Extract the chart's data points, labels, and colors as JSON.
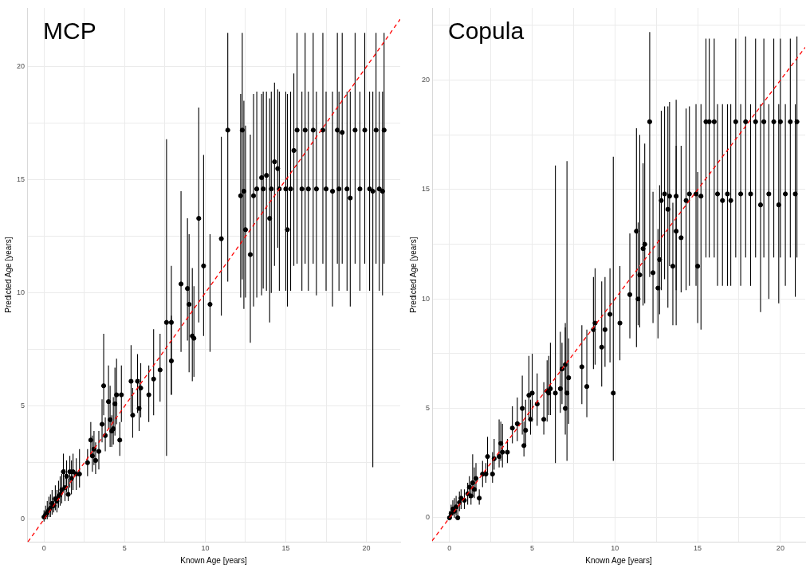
{
  "chart_data": [
    {
      "type": "scatter",
      "title": "MCP",
      "xlabel": "Known Age [years]",
      "ylabel": "Predicted Age [years]",
      "xlim": [
        -1.05,
        22.1
      ],
      "ylim": [
        -1.0,
        22.6
      ],
      "xticks": [
        0,
        {
          "value": 2.5,
          "label": null
        },
        5,
        {
          "value": 7.5,
          "label": null
        },
        10,
        {
          "value": 12.5,
          "label": null
        },
        15,
        {
          "value": 17.5,
          "label": null
        },
        20
      ],
      "yticks": [
        0,
        {
          "value": 2.5,
          "label": null
        },
        5,
        {
          "value": 7.5,
          "label": null
        },
        10,
        {
          "value": 12.5,
          "label": null
        },
        15,
        {
          "value": 17.5,
          "label": null
        },
        20
      ],
      "grid": true,
      "legend": false,
      "marker": "circle",
      "series": [
        {
          "color": "#000000",
          "x": [
            0,
            0.1,
            0.2,
            0.3,
            0.4,
            0.5,
            0.6,
            0.7,
            0.8,
            0.9,
            1.0,
            1.1,
            1.2,
            1.3,
            1.4,
            1.5,
            1.6,
            1.7,
            1.8,
            2.0,
            2.2,
            2.7,
            2.9,
            3.0,
            3.1,
            3.2,
            3.4,
            3.6,
            3.7,
            3.8,
            4.0,
            4.1,
            4.2,
            4.3,
            4.4,
            4.5,
            4.7,
            4.8,
            5.4,
            5.5,
            5.8,
            5.9,
            6.0,
            6.5,
            6.8,
            7.2,
            7.6,
            7.9,
            7.9,
            8.5,
            8.9,
            9.0,
            9.2,
            9.3,
            9.6,
            9.9,
            10.3,
            11.0,
            11.4,
            12.2,
            12.3,
            12.4,
            12.5,
            12.8,
            13.0,
            13.2,
            13.5,
            13.6,
            13.8,
            14.0,
            14.1,
            14.3,
            14.5,
            14.6,
            15.0,
            15.1,
            15.3,
            15.5,
            15.7,
            16.0,
            16.2,
            16.4,
            16.7,
            16.9,
            17.3,
            17.5,
            17.9,
            18.2,
            18.3,
            18.5,
            18.8,
            19.0,
            19.3,
            19.6,
            19.9,
            20.2,
            20.4,
            20.6,
            20.8,
            21.0,
            21.1
          ],
          "values": [
            0.1,
            0.2,
            0.3,
            0.4,
            0.5,
            0.7,
            0.6,
            0.9,
            0.8,
            1.0,
            1.1,
            1.3,
            2.1,
            1.4,
            1.9,
            1.1,
            2.1,
            1.8,
            2.1,
            2.0,
            2.0,
            2.5,
            3.5,
            2.8,
            3.1,
            2.6,
            3.0,
            4.2,
            5.9,
            3.7,
            5.2,
            4.4,
            3.9,
            4.0,
            5.1,
            5.5,
            3.5,
            5.5,
            6.1,
            4.6,
            6.1,
            4.9,
            5.8,
            5.5,
            6.2,
            6.6,
            8.7,
            8.7,
            7.0,
            10.4,
            10.2,
            9.5,
            8.1,
            8.0,
            13.3,
            11.2,
            9.5,
            12.4,
            17.2,
            14.3,
            17.2,
            14.5,
            12.8,
            11.7,
            14.3,
            14.6,
            15.1,
            14.6,
            15.2,
            13.3,
            14.6,
            15.8,
            15.5,
            14.6,
            14.6,
            12.8,
            14.6,
            16.3,
            17.2,
            14.6,
            17.2,
            14.6,
            17.2,
            14.6,
            17.2,
            14.6,
            14.5,
            17.2,
            14.6,
            17.1,
            14.6,
            14.2,
            17.2,
            14.6,
            17.2,
            14.6,
            14.5,
            17.2,
            14.6,
            14.5,
            17.2
          ],
          "errors": [
            [
              -0.1,
              0.4
            ],
            [
              0,
              0.6
            ],
            [
              0,
              0.8
            ],
            [
              0.1,
              1.0
            ],
            [
              0.1,
              1.1
            ],
            [
              0.2,
              1.3
            ],
            [
              0.3,
              1.0
            ],
            [
              0.4,
              1.5
            ],
            [
              0.3,
              1.3
            ],
            [
              0.5,
              1.7
            ],
            [
              0.6,
              1.9
            ],
            [
              0.7,
              2.0
            ],
            [
              1.4,
              2.9
            ],
            [
              0.8,
              2.2
            ],
            [
              1.2,
              2.6
            ],
            [
              0.8,
              1.8
            ],
            [
              1.4,
              2.8
            ],
            [
              1.1,
              2.6
            ],
            [
              1.3,
              2.9
            ],
            [
              1.3,
              2.7
            ],
            [
              1.4,
              3.1
            ],
            [
              1.9,
              3.1
            ],
            [
              2.8,
              4.3
            ],
            [
              2.1,
              3.7
            ],
            [
              2.4,
              3.9
            ],
            [
              2.0,
              3.4
            ],
            [
              2.2,
              3.9
            ],
            [
              3.4,
              5.3
            ],
            [
              4.6,
              8.2
            ],
            [
              3.0,
              4.5
            ],
            [
              4.0,
              6.8
            ],
            [
              3.2,
              5.9
            ],
            [
              3.2,
              4.6
            ],
            [
              3.3,
              5.4
            ],
            [
              3.7,
              6.7
            ],
            [
              4.2,
              7.1
            ],
            [
              2.8,
              4.3
            ],
            [
              4.3,
              6.8
            ],
            [
              4.7,
              7.7
            ],
            [
              3.6,
              5.8
            ],
            [
              4.7,
              7.3
            ],
            [
              3.9,
              6.2
            ],
            [
              4.5,
              6.9
            ],
            [
              4.3,
              6.8
            ],
            [
              4.6,
              8.4
            ],
            [
              5.2,
              8.2
            ],
            [
              2.8,
              16.8
            ],
            [
              5.5,
              11.2
            ],
            [
              5.5,
              9.0
            ],
            [
              7.4,
              14.5
            ],
            [
              7.9,
              13.3
            ],
            [
              6.5,
              12.6
            ],
            [
              6.1,
              11.1
            ],
            [
              6.3,
              10.3
            ],
            [
              8.7,
              18.2
            ],
            [
              8.1,
              16.1
            ],
            [
              7.4,
              12.6
            ],
            [
              9.0,
              16.9
            ],
            [
              10.5,
              21.5
            ],
            [
              9.8,
              18.8
            ],
            [
              10.6,
              21.5
            ],
            [
              9.3,
              18.5
            ],
            [
              9.8,
              17.4
            ],
            [
              7.8,
              17.0
            ],
            [
              9.4,
              18.8
            ],
            [
              9.8,
              18.9
            ],
            [
              9.9,
              18.8
            ],
            [
              10.2,
              18.9
            ],
            [
              10.1,
              18.9
            ],
            [
              8.7,
              18.6
            ],
            [
              10.0,
              18.9
            ],
            [
              11.2,
              19.3
            ],
            [
              12.0,
              19.0
            ],
            [
              10.1,
              18.9
            ],
            [
              10.1,
              18.9
            ],
            [
              9.4,
              18.8
            ],
            [
              10.1,
              18.9
            ],
            [
              11.2,
              19.7
            ],
            [
              11.3,
              21.5
            ],
            [
              10.1,
              18.9
            ],
            [
              11.3,
              21.5
            ],
            [
              10.1,
              18.9
            ],
            [
              11.3,
              21.5
            ],
            [
              9.9,
              18.9
            ],
            [
              11.3,
              21.5
            ],
            [
              10.1,
              18.9
            ],
            [
              9.4,
              18.9
            ],
            [
              11.3,
              21.5
            ],
            [
              10.1,
              18.9
            ],
            [
              11.3,
              21.5
            ],
            [
              10.1,
              18.9
            ],
            [
              9.4,
              18.9
            ],
            [
              11.3,
              21.5
            ],
            [
              10.1,
              18.9
            ],
            [
              11.3,
              21.5
            ],
            [
              10.1,
              18.9
            ],
            [
              2.3,
              18.9
            ],
            [
              11.3,
              21.5
            ],
            [
              10.1,
              18.9
            ],
            [
              9.9,
              18.9
            ],
            [
              11.3,
              21.5
            ]
          ]
        },
        {
          "type": "line",
          "color": "#ff0000",
          "line_style": "dashed",
          "marker": "none",
          "x": [
            -1.0,
            22.1
          ],
          "values": [
            -1.0,
            22.1
          ]
        }
      ]
    },
    {
      "type": "scatter",
      "title": "Copula",
      "xlabel": "Known Age [years]",
      "ylabel": "Predicted Age [years]",
      "xlim": [
        -1.05,
        21.5
      ],
      "ylim": [
        -1.1,
        23.3
      ],
      "xticks": [
        0,
        {
          "value": 2.5,
          "label": null
        },
        5,
        {
          "value": 7.5,
          "label": null
        },
        10,
        {
          "value": 12.5,
          "label": null
        },
        15,
        {
          "value": 17.5,
          "label": null
        },
        20
      ],
      "yticks": [
        0,
        {
          "value": 2.5,
          "label": null
        },
        5,
        {
          "value": 7.5,
          "label": null
        },
        10,
        {
          "value": 12.5,
          "label": null
        },
        15,
        {
          "value": 17.5,
          "label": null
        },
        20,
        {
          "value": 22.5,
          "label": null
        }
      ],
      "grid": true,
      "legend": false,
      "marker": "circle",
      "series": [
        {
          "color": "#000000",
          "x": [
            0,
            0.1,
            0.2,
            0.3,
            0.4,
            0.5,
            0.6,
            0.7,
            0.9,
            1.1,
            1.2,
            1.3,
            1.4,
            1.5,
            1.6,
            1.8,
            2.0,
            2.2,
            2.3,
            2.6,
            2.7,
            3.0,
            3.1,
            3.2,
            3.5,
            3.8,
            4.1,
            4.4,
            4.5,
            4.6,
            4.8,
            4.9,
            5.0,
            5.3,
            5.7,
            5.9,
            6.0,
            6.1,
            6.4,
            6.7,
            6.8,
            7.0,
            7.0,
            7.1,
            7.2,
            8.0,
            8.3,
            8.7,
            8.8,
            9.2,
            9.4,
            9.7,
            9.9,
            10.3,
            10.9,
            11.3,
            11.4,
            11.5,
            11.7,
            11.8,
            12.1,
            12.3,
            12.6,
            12.7,
            12.8,
            13.0,
            13.2,
            13.3,
            13.5,
            13.7,
            13.7,
            14.0,
            14.3,
            14.5,
            14.9,
            15.0,
            15.2,
            15.5,
            15.7,
            16.0,
            16.2,
            16.5,
            16.8,
            17.0,
            17.3,
            17.6,
            17.9,
            18.2,
            18.5,
            18.8,
            19.0,
            19.3,
            19.6,
            19.9,
            20.0,
            20.3,
            20.6,
            20.9,
            21.0
          ],
          "values": [
            0,
            0.2,
            0.4,
            0.3,
            0.5,
            0,
            0.7,
            0.9,
            0.8,
            1.1,
            1.4,
            1.0,
            1.6,
            1.3,
            1.8,
            0.9,
            2.0,
            2.0,
            2.8,
            2.0,
            2.7,
            2.8,
            3.4,
            3.0,
            3.0,
            4.1,
            4.3,
            5.0,
            3.3,
            4.0,
            5.6,
            4.5,
            5.7,
            5.2,
            4.5,
            5.8,
            5.7,
            5.9,
            5.7,
            5.9,
            6.8,
            5.0,
            7.0,
            5.7,
            6.4,
            6.9,
            6.0,
            8.6,
            8.9,
            7.8,
            8.6,
            9.3,
            5.7,
            8.9,
            10.2,
            13.1,
            10.0,
            11.1,
            12.3,
            12.5,
            18.1,
            11.2,
            10.5,
            11.8,
            14.5,
            14.8,
            14.1,
            14.7,
            11.5,
            14.7,
            13.1,
            12.8,
            14.5,
            14.8,
            14.8,
            11.5,
            14.7,
            18.1,
            18.1,
            18.1,
            14.8,
            14.5,
            14.8,
            14.5,
            18.1,
            14.8,
            18.1,
            14.8,
            18.1,
            14.3,
            18.1,
            14.8,
            18.1,
            14.3,
            18.1,
            14.8,
            18.1,
            14.8,
            18.1
          ],
          "errors": [
            [
              0,
              0.3
            ],
            [
              0,
              0.6
            ],
            [
              0.1,
              0.8
            ],
            [
              0,
              0.9
            ],
            [
              0.1,
              1.0
            ],
            [
              0,
              0.5
            ],
            [
              0.3,
              1.2
            ],
            [
              0.4,
              1.3
            ],
            [
              0.4,
              1.3
            ],
            [
              0.6,
              1.6
            ],
            [
              0.9,
              1.9
            ],
            [
              0.6,
              1.6
            ],
            [
              1.0,
              2.9
            ],
            [
              0.9,
              2.3
            ],
            [
              1.2,
              2.5
            ],
            [
              0.6,
              1.3
            ],
            [
              1.4,
              2.6
            ],
            [
              1.6,
              2.5
            ],
            [
              2.0,
              3.7
            ],
            [
              1.6,
              3.0
            ],
            [
              2.2,
              3.6
            ],
            [
              2.3,
              4.5
            ],
            [
              2.6,
              4.4
            ],
            [
              2.3,
              4.3
            ],
            [
              2.5,
              3.6
            ],
            [
              3.4,
              5.1
            ],
            [
              3.5,
              5.5
            ],
            [
              3.8,
              6.5
            ],
            [
              2.8,
              4.4
            ],
            [
              3.3,
              5.4
            ],
            [
              4.5,
              7.4
            ],
            [
              3.8,
              5.4
            ],
            [
              4.4,
              7.5
            ],
            [
              4.2,
              6.6
            ],
            [
              3.8,
              6.2
            ],
            [
              4.4,
              7.2
            ],
            [
              4.7,
              7.4
            ],
            [
              4.7,
              8.0
            ],
            [
              2.5,
              16.1
            ],
            [
              4.8,
              8.5
            ],
            [
              5.2,
              8.0
            ],
            [
              3.8,
              8.9
            ],
            [
              5.7,
              8.7
            ],
            [
              2.6,
              16.3
            ],
            [
              4.3,
              8.2
            ],
            [
              5.2,
              8.8
            ],
            [
              4.6,
              8.6
            ],
            [
              6.8,
              11.0
            ],
            [
              7.0,
              11.4
            ],
            [
              6.0,
              10.8
            ],
            [
              6.9,
              11.0
            ],
            [
              7.1,
              11.4
            ],
            [
              2.6,
              16.5
            ],
            [
              7.2,
              11.5
            ],
            [
              8.2,
              13.0
            ],
            [
              7.8,
              17.8
            ],
            [
              8.8,
              13.5
            ],
            [
              8.7,
              17.5
            ],
            [
              9.7,
              16.2
            ],
            [
              9.8,
              17.1
            ],
            [
              11.0,
              22.2
            ],
            [
              8.9,
              14.9
            ],
            [
              8.2,
              13.2
            ],
            [
              9.3,
              15.2
            ],
            [
              10.4,
              18.6
            ],
            [
              10.9,
              18.8
            ],
            [
              9.6,
              18.8
            ],
            [
              11.5,
              19.0
            ],
            [
              8.8,
              14.4
            ],
            [
              10.4,
              19.1
            ],
            [
              8.8,
              17.0
            ],
            [
              10.3,
              17.0
            ],
            [
              10.4,
              18.7
            ],
            [
              10.6,
              18.8
            ],
            [
              10.6,
              18.9
            ],
            [
              8.9,
              15.8
            ],
            [
              8.6,
              18.9
            ],
            [
              11.9,
              21.9
            ],
            [
              11.9,
              21.9
            ],
            [
              11.9,
              21.9
            ],
            [
              10.6,
              18.9
            ],
            [
              10.6,
              18.9
            ],
            [
              10.6,
              18.9
            ],
            [
              10.6,
              18.9
            ],
            [
              11.9,
              21.9
            ],
            [
              10.6,
              18.9
            ],
            [
              11.9,
              22.0
            ],
            [
              10.6,
              18.9
            ],
            [
              11.9,
              21.9
            ],
            [
              9.4,
              18.9
            ],
            [
              11.9,
              21.9
            ],
            [
              10.0,
              18.9
            ],
            [
              11.9,
              21.9
            ],
            [
              9.8,
              18.9
            ],
            [
              11.9,
              21.9
            ],
            [
              10.6,
              18.9
            ],
            [
              11.9,
              21.9
            ],
            [
              10.1,
              18.9
            ],
            [
              11.9,
              22.0
            ]
          ]
        },
        {
          "type": "line",
          "color": "#ff0000",
          "line_style": "dashed",
          "marker": "none",
          "x": [
            -1.05,
            21.5
          ],
          "values": [
            -1.05,
            21.5
          ]
        }
      ]
    }
  ]
}
